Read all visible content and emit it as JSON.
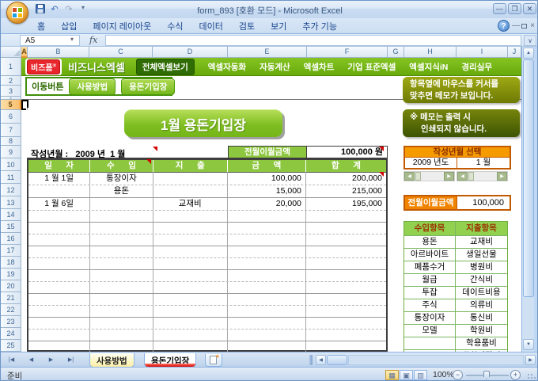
{
  "window": {
    "title": "form_893  [호환 모드]  -  Microsoft Excel"
  },
  "ribbon": {
    "tabs": [
      "홈",
      "삽입",
      "페이지 레이아웃",
      "수식",
      "데이터",
      "검토",
      "보기",
      "추가 기능"
    ]
  },
  "formula_bar": {
    "name_box": "A5",
    "fx_label": "fx",
    "formula_value": ""
  },
  "grid": {
    "columns": [
      "A",
      "B",
      "C",
      "D",
      "E",
      "F",
      "G",
      "H",
      "I",
      "J"
    ],
    "selected_column": "A",
    "selected_row": 5,
    "row_count": 25
  },
  "brand": {
    "logo_primary": "비즈폼",
    "logo_reg": "®",
    "logo_secondary": "비즈니스엑셀"
  },
  "menubar": {
    "items": [
      "전체엑셀보기",
      "엑셀자동화",
      "자동계산",
      "엑셀차트",
      "기업 표준엑셀",
      "엑셀지식iN",
      "경리실무"
    ],
    "active_item": "전체엑셀보기"
  },
  "nav": {
    "label": "이동버튼",
    "buttons": [
      "사용방법",
      "용돈기입장"
    ]
  },
  "memos": {
    "hover_line1": "항목옆에 마우스를 커서를",
    "hover_line2": "맞추면 메모가 보입니다.",
    "print_line1": "※ 메모는 출력 시",
    "print_line2": "인쇄되지 않습니다."
  },
  "ledger": {
    "banner": "1월 용돈기입장",
    "date_label": "작성년월 :",
    "date_value": "2009 년  1 월",
    "carryover_label": "전월이월금액",
    "carryover_value": "100,000 원",
    "headers": [
      "일      자",
      "수      입",
      "지      출",
      "금      액",
      "합      계"
    ],
    "rows": [
      [
        "1 월 1일",
        "통장이자",
        "",
        "100,000",
        "200,000"
      ],
      [
        "",
        "용돈",
        "",
        "15,000",
        "215,000"
      ],
      [
        "1 월 6일",
        "",
        "교재비",
        "20,000",
        "195,000"
      ]
    ],
    "empty_rows": 12
  },
  "selector": {
    "title": "작성년월 선택",
    "year": "2009 년도",
    "month": "1 월"
  },
  "side_carryover": {
    "label": "전월이월금액",
    "value": "100,000"
  },
  "items": {
    "headers": [
      "수입항목",
      "지출항목"
    ],
    "rows": [
      [
        "용돈",
        "교재비"
      ],
      [
        "아르바이트",
        "생일선물"
      ],
      [
        "폐품수거",
        "병원비"
      ],
      [
        "월급",
        "간식비"
      ],
      [
        "투잡",
        "데이트비용"
      ],
      [
        "주식",
        "의류비"
      ],
      [
        "통장이자",
        "통신비"
      ],
      [
        "모델",
        "학원비"
      ],
      [
        "",
        "학용품비"
      ],
      [
        "",
        "문화관람비"
      ]
    ]
  },
  "sheet_tabs": {
    "tabs": [
      "사용방법",
      "용돈기입장"
    ],
    "active": "용돈기입장"
  },
  "status": {
    "ready": "준비",
    "zoom": "100%"
  },
  "colors": {
    "brand_green": "#76B71E",
    "brand_dark_green": "#336F00",
    "menubar_green": "#68AA0C",
    "table_header_green": "#8DC63F",
    "items_green": "#92D050",
    "accent_orange": "#F59B00",
    "accent_orange_border": "#C35A00",
    "tab_color_red": "#D90000",
    "logo_red": "#E8262C",
    "comment_red": "#D20000"
  }
}
